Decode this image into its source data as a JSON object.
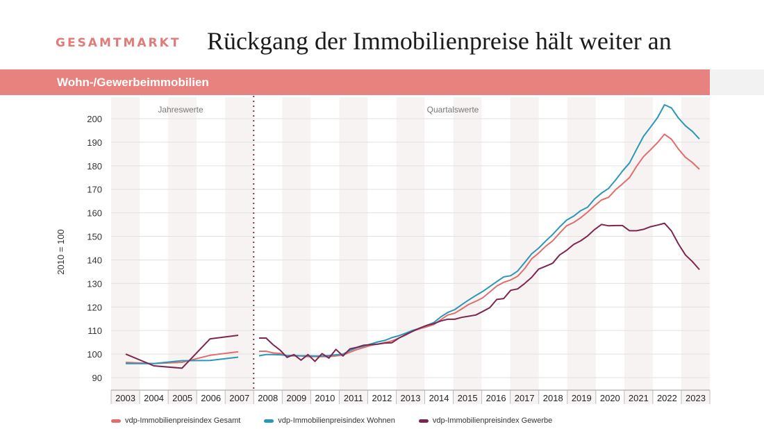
{
  "header": {
    "kicker": "GESAMTMARKT",
    "title": "Rückgang der Immobilienpreise hält weiter an",
    "section": "Wohn-/Gewerbeimmobilien"
  },
  "colors": {
    "accent": "#e8827e",
    "gesamt": "#e26d6a",
    "wohnen": "#2a97b8",
    "gewerbe": "#7e2450",
    "divider": "#8a2a52"
  },
  "chart_data": {
    "type": "line",
    "ylabel": "2010 = 100",
    "ylim": [
      90,
      210
    ],
    "yticks": [
      90,
      100,
      110,
      120,
      130,
      140,
      150,
      160,
      170,
      180,
      190,
      200
    ],
    "xlabels": [
      "2003",
      "2004",
      "2005",
      "2006",
      "2007",
      "2008",
      "2009",
      "2010",
      "2011",
      "2012",
      "2013",
      "2014",
      "2015",
      "2016",
      "2017",
      "2018",
      "2019",
      "2020",
      "2021",
      "2022",
      "2023"
    ],
    "annotations": {
      "annual": "Jahreswerte",
      "quarterly": "Quartalswerte"
    },
    "legend": [
      "vdp-Immobilienpreisindex Gesamt",
      "vdp-Immobilienpreisindex Wohnen",
      "vdp-Immobilienpreisindex Gewerbe"
    ],
    "annual": {
      "years": [
        2003,
        2004,
        2005,
        2006,
        2007
      ],
      "series": [
        {
          "key": "gesamt",
          "values": [
            96.5,
            96.0,
            96.5,
            99.5,
            101.0
          ]
        },
        {
          "key": "wohnen",
          "values": [
            96.0,
            96.0,
            97.2,
            97.3,
            98.7
          ]
        },
        {
          "key": "gewerbe",
          "values": [
            100.0,
            95.0,
            94.0,
            106.5,
            108.0
          ]
        }
      ]
    },
    "quarterly": {
      "start": "2008Q1",
      "series": [
        {
          "key": "gesamt",
          "values": [
            101.2,
            101.2,
            100.5,
            100.3,
            99.3,
            99.2,
            99.2,
            98.9,
            98.9,
            98.9,
            98.9,
            99.2,
            99.6,
            100.8,
            101.9,
            102.8,
            103.7,
            104.3,
            104.9,
            105.6,
            106.8,
            108.1,
            109.8,
            110.8,
            111.6,
            112.6,
            114.6,
            116.6,
            117.4,
            119.2,
            121.1,
            122.4,
            123.9,
            126.4,
            128.9,
            130.5,
            131.5,
            133.1,
            136.3,
            140.5,
            142.9,
            145.8,
            148.1,
            151.4,
            154.5,
            155.9,
            157.9,
            160.3,
            163.0,
            165.5,
            166.6,
            169.8,
            172.3,
            175.0,
            179.7,
            183.9,
            186.8,
            189.8,
            193.4,
            191.3,
            187.1,
            183.6,
            181.4,
            178.5
          ]
        },
        {
          "key": "wohnen",
          "values": [
            99.3,
            99.8,
            99.8,
            99.7,
            99.4,
            99.4,
            99.3,
            99.3,
            99.2,
            99.2,
            99.4,
            99.7,
            100.0,
            101.5,
            102.7,
            103.4,
            104.3,
            105.2,
            105.8,
            107.0,
            107.8,
            108.9,
            110.1,
            111.0,
            112.2,
            113.4,
            115.8,
            117.7,
            118.9,
            121.0,
            123.0,
            124.9,
            126.6,
            128.7,
            130.8,
            132.8,
            133.3,
            135.3,
            138.9,
            142.6,
            145.0,
            148.0,
            150.8,
            154.0,
            156.9,
            158.6,
            160.9,
            162.4,
            165.9,
            168.4,
            170.4,
            173.9,
            177.8,
            181.2,
            186.9,
            192.5,
            196.4,
            200.4,
            205.9,
            204.6,
            200.3,
            197.0,
            194.6,
            191.4
          ]
        },
        {
          "key": "gewerbe",
          "values": [
            106.8,
            106.8,
            104.0,
            101.7,
            98.6,
            99.8,
            97.4,
            99.8,
            96.9,
            100.2,
            98.3,
            102.0,
            99.2,
            102.2,
            102.9,
            103.8,
            104.0,
            104.2,
            104.7,
            104.8,
            106.8,
            108.3,
            109.7,
            111.1,
            112.2,
            112.9,
            114.1,
            114.8,
            114.8,
            115.6,
            116.1,
            116.6,
            118.1,
            119.7,
            123.2,
            123.6,
            127.1,
            127.7,
            130.0,
            132.6,
            136.1,
            137.3,
            138.6,
            142.1,
            144.1,
            146.6,
            148.1,
            150.2,
            152.9,
            155.1,
            154.5,
            154.6,
            154.6,
            152.4,
            152.4,
            153.0,
            154.1,
            154.8,
            155.6,
            152.3,
            146.8,
            142.1,
            139.3,
            135.9
          ]
        }
      ]
    }
  }
}
